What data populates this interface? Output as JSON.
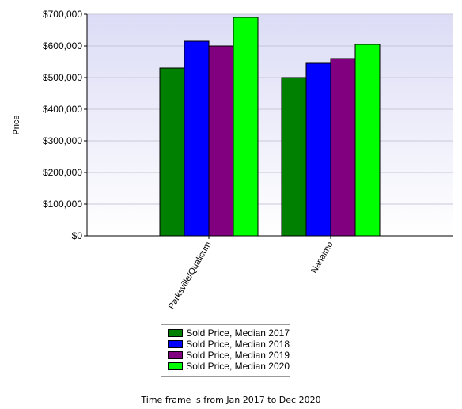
{
  "chart_data": {
    "type": "bar",
    "categories": [
      "Parksville/Qualicum",
      "Nanaimo"
    ],
    "series": [
      {
        "name": "Sold Price, Median 2017",
        "color": "#008000",
        "values": [
          530000,
          500000
        ]
      },
      {
        "name": "Sold Price, Median 2018",
        "color": "#0000ff",
        "values": [
          615000,
          545000
        ]
      },
      {
        "name": "Sold Price, Median 2019",
        "color": "#800080",
        "values": [
          600000,
          560000
        ]
      },
      {
        "name": "Sold Price, Median 2020",
        "color": "#00ff00",
        "values": [
          690000,
          605000
        ]
      }
    ],
    "ylabel": "Price",
    "ylim": [
      0,
      700000
    ],
    "yticks": [
      "$0",
      "$100,000",
      "$200,000",
      "$300,000",
      "$400,000",
      "$500,000",
      "$600,000",
      "$700,000"
    ],
    "grid": true,
    "legend_position": "bottom-center",
    "plot_background": "#e6e6fa"
  },
  "footer": "Time frame is from Jan 2017 to Dec 2020"
}
